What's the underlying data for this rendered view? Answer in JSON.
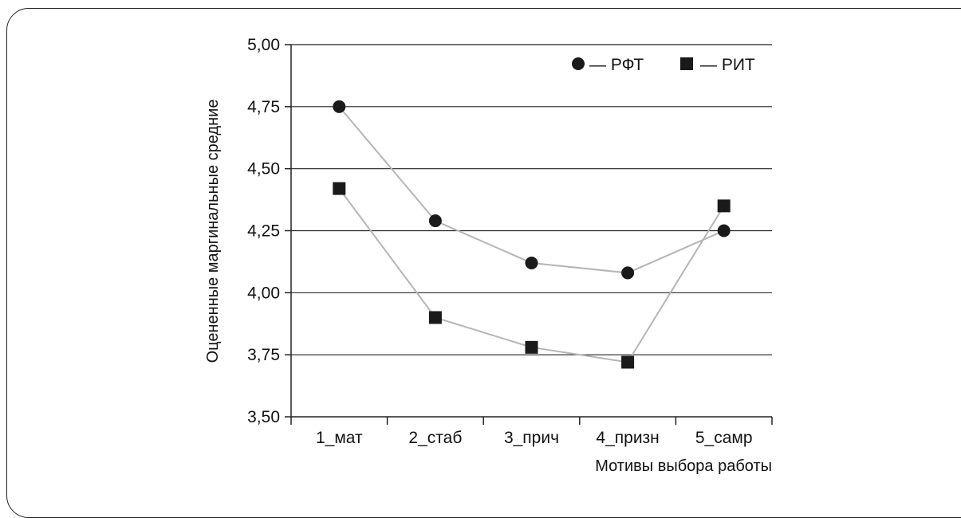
{
  "chart_data": {
    "type": "line",
    "categories": [
      "1_мат",
      "2_стаб",
      "3_прич",
      "4_призн",
      "5_самр"
    ],
    "series": [
      {
        "name": "РФТ",
        "marker": "circle",
        "values": [
          4.75,
          4.29,
          4.12,
          4.08,
          4.25
        ]
      },
      {
        "name": "РИТ",
        "marker": "square",
        "values": [
          4.42,
          3.9,
          3.78,
          3.72,
          4.35
        ]
      }
    ],
    "yticks": [
      "3,50",
      "3,75",
      "4,00",
      "4,25",
      "4,50",
      "4,75",
      "5,00"
    ],
    "ytick_values": [
      3.5,
      3.75,
      4.0,
      4.25,
      4.5,
      4.75,
      5.0
    ],
    "ylim": [
      3.5,
      5.0
    ],
    "xlabel": "Мотивы выбора работы",
    "ylabel": "Оцененные маргинальные средние",
    "legend_position": "top-right",
    "legend_labels": [
      "— РФТ",
      "— РИТ"
    ],
    "grid": true,
    "colors": {
      "line": "#b5b5b5",
      "marker": "#1a1a1a",
      "grid": "#222222",
      "axis": "#222222"
    }
  }
}
